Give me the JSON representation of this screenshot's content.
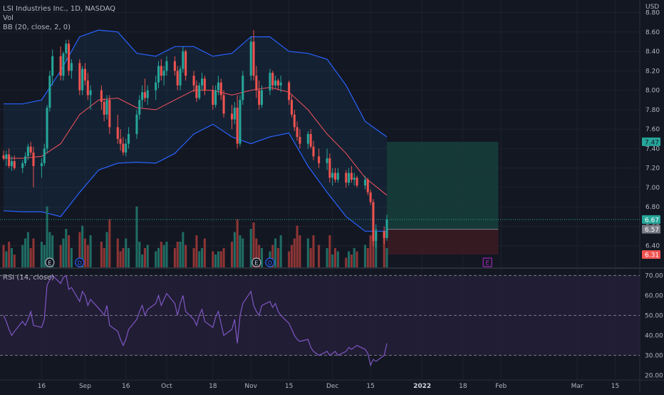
{
  "legend": {
    "title": "LSI Industries Inc., 1D, NASDAQ",
    "vol": "Vol",
    "bb": "BB (20, close, 2, 0)",
    "rsi": "RSI (14, close)"
  },
  "currency": "USD",
  "colors": {
    "background": "#131722",
    "up": "#26a69a",
    "down": "#ef5350",
    "vol_up": "#1f6d64",
    "vol_down": "#8e3535",
    "bb_band": "#2962ff",
    "bb_basis": "#f7525f",
    "rsi_line": "#7e57c2",
    "rsi_fill": "#241f38",
    "profit_zone": "#163d3a",
    "loss_zone": "#3b1b22",
    "grid": "#1e222d"
  },
  "price_axis": {
    "ticks": [
      "8.80",
      "8.60",
      "8.40",
      "8.20",
      "8.00",
      "7.80",
      "7.60",
      "7.40",
      "7.20",
      "7.00",
      "6.80",
      "6.60",
      "6.40"
    ],
    "ylim": [
      6.2,
      8.87
    ]
  },
  "rsi_axis": {
    "ticks": [
      "70.00",
      "60.00",
      "50.00",
      "40.00",
      "30.00",
      "20.00"
    ],
    "ylim": [
      18,
      73
    ],
    "bands": [
      70,
      50,
      30
    ]
  },
  "time_axis": {
    "labels": [
      "16",
      "Sep",
      "16",
      "Oct",
      "18",
      "Nov",
      "15",
      "Dec",
      "15",
      "2022",
      "18",
      "Feb",
      "Mar",
      "15"
    ],
    "label_dates": [
      "2021-08-16",
      "2021-09-01",
      "2021-09-16",
      "2021-10-01",
      "2021-10-18",
      "2021-11-01",
      "2021-11-15",
      "2021-12-01",
      "2021-12-15",
      "2022-01-03",
      "2022-01-18",
      "2022-02-01",
      "2022-03-01",
      "2022-03-15"
    ]
  },
  "price_tags": [
    {
      "label": "7.47",
      "value": 7.47,
      "bg": "#26a69a",
      "color": "#131722"
    },
    {
      "label": "6.67",
      "value": 6.67,
      "bg": "#26a69a",
      "color": "#ffffff"
    },
    {
      "label": "6.57",
      "value": 6.57,
      "bg": "#787b86",
      "color": "#ffffff"
    },
    {
      "label": "6.31",
      "value": 6.31,
      "bg": "#ef5350",
      "color": "#ffffff"
    }
  ],
  "event_markers": [
    {
      "type": "E",
      "date": "2021-08-19"
    },
    {
      "type": "D",
      "date": "2021-08-30"
    },
    {
      "type": "E",
      "date": "2021-11-03"
    },
    {
      "type": "D",
      "date": "2021-11-08"
    },
    {
      "type": "E",
      "date": "2022-01-27",
      "style": "box"
    }
  ],
  "chart_data": {
    "type": "candlestick",
    "symbol": "LSI Industries Inc.",
    "interval": "1D",
    "exchange": "NASDAQ",
    "last_price": 6.67,
    "candles": [
      [
        "2021-08-02",
        7.33,
        7.38,
        7.28,
        7.3
      ],
      [
        "2021-08-03",
        7.3,
        7.38,
        7.22,
        7.34
      ],
      [
        "2021-08-04",
        7.34,
        7.4,
        7.2,
        7.22
      ],
      [
        "2021-08-05",
        7.22,
        7.32,
        7.17,
        7.27
      ],
      [
        "2021-08-06",
        7.27,
        7.33,
        7.18,
        7.2
      ],
      [
        "2021-08-09",
        7.2,
        7.28,
        7.15,
        7.25
      ],
      [
        "2021-08-10",
        7.25,
        7.36,
        7.22,
        7.32
      ],
      [
        "2021-08-11",
        7.32,
        7.45,
        7.28,
        7.42
      ],
      [
        "2021-08-12",
        7.42,
        7.47,
        7.33,
        7.36
      ],
      [
        "2021-08-13",
        7.36,
        7.42,
        7.0,
        7.22
      ],
      [
        "2021-08-16",
        7.22,
        7.3,
        7.1,
        7.25
      ],
      [
        "2021-08-17",
        7.25,
        7.45,
        7.22,
        7.4
      ],
      [
        "2021-08-18",
        7.4,
        7.85,
        7.35,
        7.82
      ],
      [
        "2021-08-19",
        7.82,
        8.2,
        7.78,
        8.15
      ],
      [
        "2021-08-20",
        8.15,
        8.42,
        8.05,
        8.35
      ],
      [
        "2021-08-23",
        8.35,
        8.45,
        8.1,
        8.15
      ],
      [
        "2021-08-24",
        8.15,
        8.4,
        8.1,
        8.38
      ],
      [
        "2021-08-25",
        8.38,
        8.52,
        8.3,
        8.48
      ],
      [
        "2021-08-26",
        8.48,
        8.52,
        8.15,
        8.2
      ],
      [
        "2021-08-27",
        8.2,
        8.32,
        8.12,
        8.28
      ],
      [
        "2021-08-30",
        8.28,
        8.32,
        7.95,
        8.0
      ],
      [
        "2021-08-31",
        8.0,
        8.25,
        7.95,
        8.22
      ],
      [
        "2021-09-01",
        8.22,
        8.28,
        8.05,
        8.1
      ],
      [
        "2021-09-02",
        8.1,
        8.18,
        7.9,
        7.95
      ],
      [
        "2021-09-03",
        7.95,
        8.05,
        7.8,
        8.0
      ],
      [
        "2021-09-07",
        8.0,
        8.05,
        7.8,
        7.88
      ],
      [
        "2021-09-08",
        7.88,
        7.92,
        7.68,
        7.75
      ],
      [
        "2021-09-09",
        7.75,
        7.95,
        7.7,
        7.9
      ],
      [
        "2021-09-10",
        7.9,
        7.95,
        7.55,
        7.62
      ],
      [
        "2021-09-13",
        7.62,
        7.75,
        7.45,
        7.5
      ],
      [
        "2021-09-14",
        7.5,
        7.6,
        7.38,
        7.45
      ],
      [
        "2021-09-15",
        7.45,
        7.52,
        7.33,
        7.36
      ],
      [
        "2021-09-16",
        7.36,
        7.5,
        7.32,
        7.45
      ],
      [
        "2021-09-17",
        7.45,
        7.62,
        7.4,
        7.55
      ],
      [
        "2021-09-20",
        7.55,
        7.8,
        7.5,
        7.75
      ],
      [
        "2021-09-21",
        7.75,
        7.95,
        7.7,
        7.9
      ],
      [
        "2021-09-22",
        7.9,
        8.05,
        7.82,
        7.98
      ],
      [
        "2021-09-23",
        7.98,
        8.12,
        7.88,
        7.92
      ],
      [
        "2021-09-24",
        7.92,
        8.05,
        7.85,
        8.0
      ],
      [
        "2021-09-27",
        8.0,
        8.15,
        7.9,
        8.08
      ],
      [
        "2021-09-28",
        8.08,
        8.3,
        8.02,
        8.25
      ],
      [
        "2021-09-29",
        8.25,
        8.32,
        8.1,
        8.15
      ],
      [
        "2021-09-30",
        8.15,
        8.25,
        8.05,
        8.2
      ],
      [
        "2021-10-01",
        8.2,
        8.35,
        8.15,
        8.3
      ],
      [
        "2021-10-04",
        8.3,
        8.35,
        8.15,
        8.2
      ],
      [
        "2021-10-05",
        8.2,
        8.25,
        8.0,
        8.05
      ],
      [
        "2021-10-06",
        8.05,
        8.25,
        8.0,
        8.22
      ],
      [
        "2021-10-07",
        8.22,
        8.45,
        8.18,
        8.4
      ],
      [
        "2021-10-08",
        8.4,
        8.42,
        8.1,
        8.15
      ],
      [
        "2021-10-11",
        8.15,
        8.2,
        7.98,
        8.05
      ],
      [
        "2021-10-12",
        8.05,
        8.1,
        7.88,
        7.92
      ],
      [
        "2021-10-13",
        7.92,
        8.08,
        7.9,
        8.05
      ],
      [
        "2021-10-14",
        8.05,
        8.18,
        8.0,
        8.12
      ],
      [
        "2021-10-15",
        8.12,
        8.15,
        7.95,
        8.0
      ],
      [
        "2021-10-18",
        8.0,
        8.05,
        7.8,
        7.85
      ],
      [
        "2021-10-19",
        7.85,
        8.05,
        7.82,
        8.0
      ],
      [
        "2021-10-20",
        8.0,
        8.15,
        7.95,
        8.08
      ],
      [
        "2021-10-21",
        8.08,
        8.12,
        7.9,
        7.95
      ],
      [
        "2021-10-22",
        7.95,
        8.0,
        7.72,
        7.76
      ],
      [
        "2021-10-25",
        7.76,
        7.85,
        7.6,
        7.7
      ],
      [
        "2021-10-26",
        7.7,
        7.88,
        7.65,
        7.82
      ],
      [
        "2021-10-27",
        7.82,
        7.95,
        7.4,
        7.45
      ],
      [
        "2021-10-28",
        7.45,
        7.95,
        7.42,
        7.9
      ],
      [
        "2021-10-29",
        7.9,
        8.2,
        7.85,
        8.15
      ],
      [
        "2021-11-01",
        8.15,
        8.55,
        8.1,
        8.5
      ],
      [
        "2021-11-02",
        8.5,
        8.62,
        8.1,
        8.15
      ],
      [
        "2021-11-03",
        8.15,
        8.25,
        7.92,
        8.0
      ],
      [
        "2021-11-04",
        8.0,
        8.1,
        7.8,
        7.85
      ],
      [
        "2021-11-05",
        7.85,
        8.05,
        7.82,
        8.0
      ],
      [
        "2021-11-08",
        8.0,
        8.22,
        7.95,
        8.18
      ],
      [
        "2021-11-09",
        8.18,
        8.2,
        8.0,
        8.05
      ],
      [
        "2021-11-10",
        8.05,
        8.15,
        8.02,
        8.1
      ],
      [
        "2021-11-11",
        8.1,
        8.12,
        8.0,
        8.05
      ],
      [
        "2021-11-12",
        8.05,
        8.15,
        7.98,
        8.08
      ],
      [
        "2021-11-15",
        8.08,
        8.1,
        7.85,
        7.9
      ],
      [
        "2021-11-16",
        7.9,
        7.95,
        7.72,
        7.75
      ],
      [
        "2021-11-17",
        7.75,
        7.8,
        7.58,
        7.62
      ],
      [
        "2021-11-18",
        7.62,
        7.68,
        7.48,
        7.52
      ],
      [
        "2021-11-19",
        7.52,
        7.6,
        7.4,
        7.45
      ],
      [
        "2021-11-22",
        7.45,
        7.58,
        7.4,
        7.55
      ],
      [
        "2021-11-23",
        7.55,
        7.6,
        7.4,
        7.42
      ],
      [
        "2021-11-24",
        7.42,
        7.48,
        7.28,
        7.32
      ],
      [
        "2021-11-26",
        7.32,
        7.4,
        7.2,
        7.25
      ],
      [
        "2021-11-29",
        7.25,
        7.4,
        7.18,
        7.3
      ],
      [
        "2021-11-30",
        7.3,
        7.35,
        7.05,
        7.1
      ],
      [
        "2021-12-01",
        7.1,
        7.2,
        7.02,
        7.15
      ],
      [
        "2021-12-02",
        7.15,
        7.2,
        7.05,
        7.08
      ],
      [
        "2021-12-03",
        7.08,
        7.2,
        7.05,
        7.15
      ],
      [
        "2021-12-06",
        7.15,
        7.18,
        7.0,
        7.05
      ],
      [
        "2021-12-07",
        7.05,
        7.2,
        7.02,
        7.15
      ],
      [
        "2021-12-08",
        7.15,
        7.22,
        7.05,
        7.08
      ],
      [
        "2021-12-09",
        7.08,
        7.15,
        7.02,
        7.1
      ],
      [
        "2021-12-10",
        7.1,
        7.12,
        7.0,
        7.02
      ],
      [
        "2021-12-13",
        7.02,
        7.12,
        6.98,
        7.08
      ],
      [
        "2021-12-14",
        7.08,
        7.1,
        6.92,
        6.95
      ],
      [
        "2021-12-15",
        6.95,
        6.98,
        6.82,
        6.85
      ],
      [
        "2021-12-16",
        6.85,
        6.88,
        6.4,
        6.45
      ],
      [
        "2021-12-17",
        6.45,
        6.62,
        6.38,
        6.55
      ],
      [
        "2021-12-20",
        6.55,
        6.6,
        6.42,
        6.48
      ],
      [
        "2021-12-21",
        6.48,
        6.72,
        6.45,
        6.67
      ]
    ],
    "volume_relative": [
      0.35,
      0.25,
      0.4,
      0.3,
      0.2,
      0.35,
      0.45,
      0.55,
      0.3,
      0.45,
      0.4,
      0.35,
      0.95,
      0.55,
      0.5,
      0.35,
      0.45,
      0.6,
      0.5,
      0.3,
      0.55,
      0.65,
      0.45,
      0.35,
      0.5,
      0.4,
      0.3,
      0.55,
      0.75,
      0.45,
      0.25,
      0.3,
      0.45,
      0.3,
      0.95,
      0.4,
      0.2,
      0.3,
      0.35,
      0.25,
      0.3,
      0.4,
      0.35,
      0.4,
      0.3,
      0.4,
      0.4,
      0.55,
      0.35,
      0.3,
      0.5,
      0.25,
      0.3,
      0.45,
      0.25,
      0.2,
      0.25,
      0.25,
      0.3,
      0.4,
      0.55,
      0.75,
      0.5,
      0.45,
      0.6,
      0.7,
      0.45,
      0.35,
      0.3,
      0.25,
      0.35,
      0.45,
      0.3,
      0.5,
      0.25,
      0.35,
      0.45,
      0.65,
      0.5,
      0.45,
      0.3,
      0.5,
      0.35,
      0.3,
      0.5,
      0.2,
      0.3,
      0.25,
      0.15,
      0.25,
      0.2,
      0.3,
      0.25,
      0.35,
      0.3,
      0.5,
      0.45,
      0.6,
      0.55,
      0.3
    ],
    "bollinger": {
      "period": 20,
      "source": "close",
      "mult": 2,
      "dates": [
        "2021-08-02",
        "2021-08-09",
        "2021-08-16",
        "2021-08-23",
        "2021-08-30",
        "2021-09-06",
        "2021-09-13",
        "2021-09-20",
        "2021-09-27",
        "2021-10-04",
        "2021-10-11",
        "2021-10-18",
        "2021-10-25",
        "2021-11-01",
        "2021-11-08",
        "2021-11-15",
        "2021-11-22",
        "2021-11-29",
        "2021-12-06",
        "2021-12-13",
        "2021-12-21"
      ],
      "upper": [
        7.86,
        7.86,
        7.9,
        8.2,
        8.55,
        8.62,
        8.6,
        8.38,
        8.35,
        8.45,
        8.45,
        8.35,
        8.38,
        8.55,
        8.55,
        8.4,
        8.38,
        8.32,
        8.05,
        7.68,
        7.52
      ],
      "basis": [
        7.3,
        7.3,
        7.32,
        7.45,
        7.75,
        7.9,
        7.92,
        7.82,
        7.8,
        7.9,
        8.0,
        8.0,
        7.95,
        8.0,
        8.03,
        7.98,
        7.8,
        7.55,
        7.35,
        7.1,
        6.92
      ],
      "lower": [
        6.76,
        6.75,
        6.75,
        6.7,
        6.95,
        7.18,
        7.25,
        7.26,
        7.25,
        7.35,
        7.55,
        7.65,
        7.52,
        7.45,
        7.52,
        7.56,
        7.22,
        6.95,
        6.7,
        6.55,
        6.55
      ]
    },
    "rsi": {
      "period": 14,
      "source": "close",
      "values": [
        50,
        47,
        43,
        40,
        42,
        47,
        45,
        48,
        52,
        45,
        44,
        48,
        65,
        68,
        70,
        66,
        69,
        70,
        63,
        64,
        57,
        62,
        60,
        55,
        58,
        52,
        50,
        55,
        45,
        42,
        38,
        35,
        38,
        43,
        48,
        52,
        55,
        50,
        53,
        56,
        60,
        55,
        58,
        61,
        56,
        50,
        56,
        60,
        52,
        48,
        45,
        50,
        53,
        47,
        44,
        49,
        52,
        46,
        40,
        43,
        48,
        36,
        50,
        56,
        62,
        55,
        52,
        50,
        55,
        57,
        54,
        56,
        52,
        50,
        46,
        43,
        40,
        38,
        37,
        38,
        34,
        32,
        30,
        32,
        30,
        31,
        32,
        30,
        32,
        34,
        33,
        34,
        35,
        33,
        31,
        25,
        28,
        27,
        30,
        36
      ],
      "lower_band": 30,
      "middle_band": 50,
      "upper_band": 70
    },
    "position": {
      "type": "long",
      "entry": 6.57,
      "target": 7.47,
      "stop": 6.31,
      "start_date": "2021-12-21",
      "end_date": "2022-01-31"
    }
  }
}
